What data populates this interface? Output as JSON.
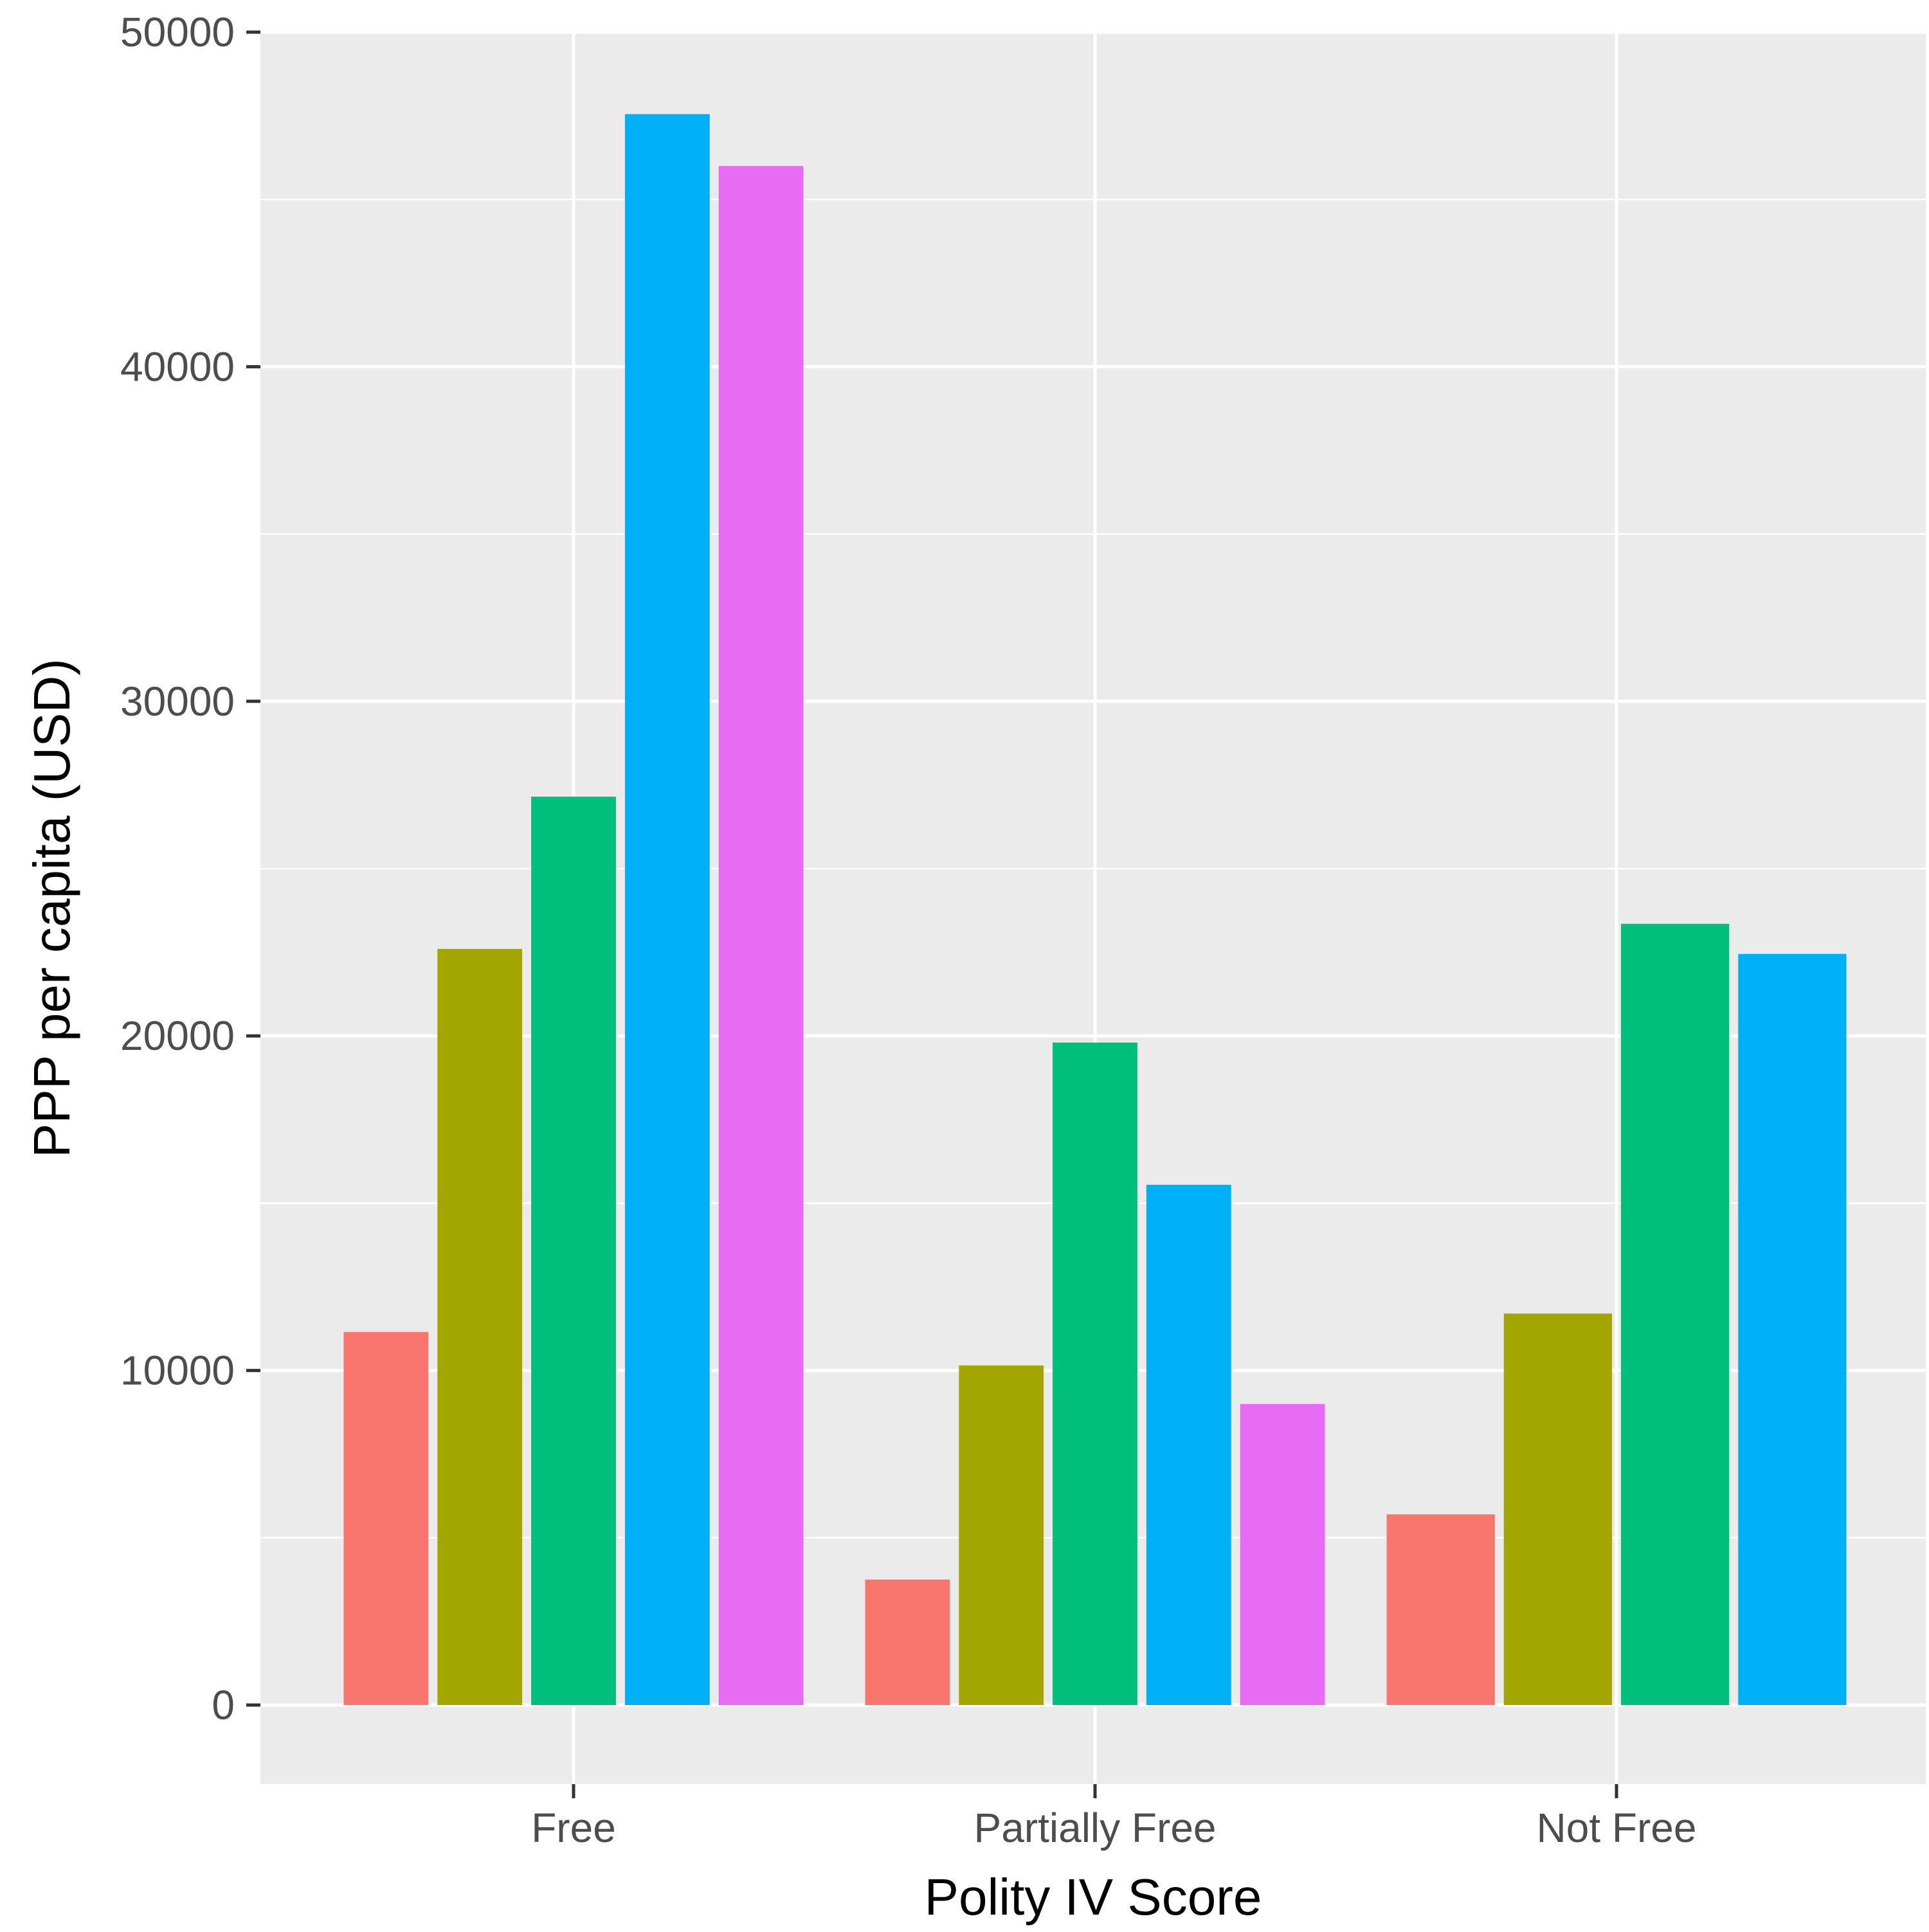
{
  "chart_data": {
    "type": "bar",
    "title": "",
    "xlabel": "Polity IV Score",
    "ylabel": "PPP per capita (USD)",
    "ylim": [
      -2400,
      50000
    ],
    "yticks": [
      0,
      10000,
      20000,
      30000,
      40000,
      50000
    ],
    "grid": true,
    "legend": "none",
    "groups": [
      {
        "category": "Free",
        "bars": [
          {
            "value": 11150,
            "color": "#F8766D"
          },
          {
            "value": 22600,
            "color": "#A3A500"
          },
          {
            "value": 27150,
            "color": "#00BF7D"
          },
          {
            "value": 47550,
            "color": "#00B0F6"
          },
          {
            "value": 46000,
            "color": "#E76BF3"
          }
        ]
      },
      {
        "category": "Partially Free",
        "bars": [
          {
            "value": 3750,
            "color": "#F8766D"
          },
          {
            "value": 10150,
            "color": "#A3A500"
          },
          {
            "value": 19800,
            "color": "#00BF7D"
          },
          {
            "value": 15550,
            "color": "#00B0F6"
          },
          {
            "value": 9000,
            "color": "#E76BF3"
          }
        ]
      },
      {
        "category": "Not Free",
        "bars": [
          {
            "value": 5700,
            "color": "#F8766D"
          },
          {
            "value": 11700,
            "color": "#A3A500"
          },
          {
            "value": 23350,
            "color": "#00BF7D"
          },
          {
            "value": 22450,
            "color": "#00B0F6"
          }
        ]
      }
    ],
    "colors": {
      "panel_background": "#EBEBEB",
      "grid": "#FFFFFF",
      "ticks": "#333333"
    }
  }
}
